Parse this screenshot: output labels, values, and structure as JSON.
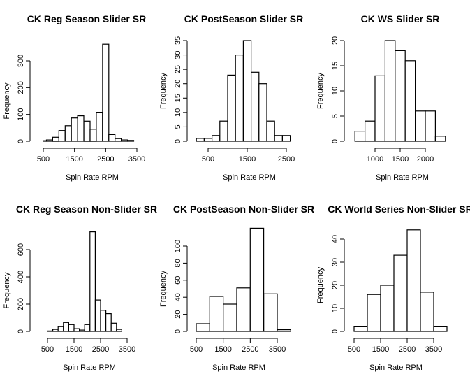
{
  "chart_data": [
    {
      "type": "bar",
      "title": "CK Reg Season Slider SR",
      "xlabel": "Spin Rate RPM",
      "ylabel": "Frequency",
      "xlim": [
        500,
        3500
      ],
      "ylim": [
        0,
        360
      ],
      "xticks": [
        500,
        1500,
        2500,
        3500
      ],
      "yticks": [
        0,
        100,
        200,
        300
      ],
      "bins": [
        [
          500,
          600
        ],
        [
          600,
          800
        ],
        [
          800,
          1000
        ],
        [
          1000,
          1200
        ],
        [
          1200,
          1400
        ],
        [
          1400,
          1600
        ],
        [
          1600,
          1800
        ],
        [
          1800,
          2000
        ],
        [
          2000,
          2200
        ],
        [
          2200,
          2400
        ],
        [
          2400,
          2600
        ],
        [
          2600,
          2800
        ],
        [
          2800,
          3000
        ],
        [
          3000,
          3200
        ],
        [
          3200,
          3400
        ]
      ],
      "values": [
        2,
        5,
        15,
        40,
        58,
        87,
        95,
        75,
        45,
        108,
        362,
        25,
        10,
        5,
        3
      ]
    },
    {
      "type": "bar",
      "title": "CK PostSeason Slider SR",
      "xlabel": "Spin Rate RPM",
      "ylabel": "Frequency",
      "xlim": [
        500,
        2500
      ],
      "ylim": [
        0,
        35
      ],
      "xticks": [
        500,
        1500,
        2500
      ],
      "yticks": [
        0,
        5,
        10,
        15,
        20,
        25,
        30,
        35
      ],
      "bins": [
        [
          200,
          400
        ],
        [
          400,
          600
        ],
        [
          600,
          800
        ],
        [
          800,
          1000
        ],
        [
          1000,
          1200
        ],
        [
          1200,
          1400
        ],
        [
          1400,
          1600
        ],
        [
          1600,
          1800
        ],
        [
          1800,
          2000
        ],
        [
          2000,
          2200
        ],
        [
          2200,
          2400
        ],
        [
          2400,
          2600
        ]
      ],
      "values": [
        1,
        1,
        2,
        7,
        23,
        30,
        35,
        24,
        20,
        7,
        2,
        2
      ]
    },
    {
      "type": "bar",
      "title": "CK WS Slider SR",
      "xlabel": "Spin Rate RPM",
      "ylabel": "Frequency",
      "xlim": [
        1000,
        2000
      ],
      "ylim": [
        0,
        20
      ],
      "xticks": [
        1000,
        1500,
        2000
      ],
      "yticks": [
        0,
        5,
        10,
        15,
        20
      ],
      "bins": [
        [
          600,
          800
        ],
        [
          800,
          1000
        ],
        [
          1000,
          1200
        ],
        [
          1200,
          1400
        ],
        [
          1400,
          1600
        ],
        [
          1600,
          1800
        ],
        [
          1800,
          2000
        ],
        [
          2000,
          2200
        ],
        [
          2200,
          2400
        ]
      ],
      "values": [
        2,
        4,
        13,
        20,
        18,
        16,
        6,
        6,
        1
      ]
    },
    {
      "type": "bar",
      "title": "CK Reg Season Non-Slider SR",
      "xlabel": "Spin Rate RPM",
      "ylabel": "Frequency",
      "xlim": [
        500,
        3500
      ],
      "ylim": [
        0,
        730
      ],
      "xticks": [
        500,
        1500,
        2500,
        3500
      ],
      "yticks": [
        0,
        200,
        400,
        600
      ],
      "bins": [
        [
          500,
          700
        ],
        [
          700,
          900
        ],
        [
          900,
          1100
        ],
        [
          1100,
          1300
        ],
        [
          1300,
          1500
        ],
        [
          1500,
          1700
        ],
        [
          1700,
          1900
        ],
        [
          1900,
          2100
        ],
        [
          2100,
          2300
        ],
        [
          2300,
          2500
        ],
        [
          2500,
          2700
        ],
        [
          2700,
          2900
        ],
        [
          2900,
          3100
        ],
        [
          3100,
          3300
        ]
      ],
      "values": [
        3,
        15,
        35,
        65,
        50,
        20,
        10,
        50,
        730,
        230,
        155,
        130,
        60,
        15
      ]
    },
    {
      "type": "bar",
      "title": "CK PostSeason Non-Slider SR",
      "xlabel": "Spin Rate RPM",
      "ylabel": "Frequency",
      "xlim": [
        500,
        4000
      ],
      "ylim": [
        0,
        120
      ],
      "xticks": [
        500,
        1500,
        2500,
        3500
      ],
      "yticks": [
        0,
        20,
        40,
        60,
        80,
        100
      ],
      "bins": [
        [
          500,
          1000
        ],
        [
          1000,
          1500
        ],
        [
          1500,
          2000
        ],
        [
          2000,
          2500
        ],
        [
          2500,
          3000
        ],
        [
          3000,
          3500
        ],
        [
          3500,
          4000
        ]
      ],
      "values": [
        9,
        41,
        32,
        51,
        121,
        44,
        2
      ]
    },
    {
      "type": "bar",
      "title": "CK World Series Non-Slider SR",
      "xlabel": "Spin Rate RPM",
      "ylabel": "Frequency",
      "xlim": [
        500,
        4000
      ],
      "ylim": [
        0,
        44
      ],
      "xticks": [
        500,
        1500,
        2500,
        3500
      ],
      "yticks": [
        0,
        10,
        20,
        30,
        40
      ],
      "bins": [
        [
          500,
          1000
        ],
        [
          1000,
          1500
        ],
        [
          1500,
          2000
        ],
        [
          2000,
          2500
        ],
        [
          2500,
          3000
        ],
        [
          3000,
          3500
        ],
        [
          3500,
          4000
        ]
      ],
      "values": [
        2,
        16,
        20,
        33,
        44,
        17,
        2
      ]
    }
  ]
}
